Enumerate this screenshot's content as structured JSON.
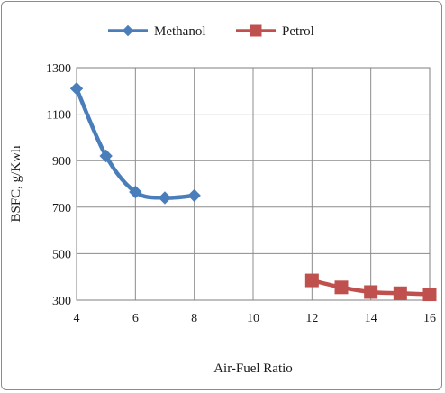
{
  "chart_data": {
    "type": "line",
    "xlabel": "Air-Fuel Ratio",
    "ylabel": "BSFC, g/Kwh",
    "xlim": [
      4,
      16
    ],
    "ylim": [
      300,
      1300
    ],
    "xticks": [
      4,
      6,
      8,
      10,
      12,
      14,
      16
    ],
    "yticks": [
      300,
      500,
      700,
      900,
      1100,
      1300
    ],
    "grid": true,
    "legend_position": "top",
    "series": [
      {
        "name": "Methanol",
        "color": "#4a7ebb",
        "marker": "diamond",
        "x": [
          4,
          5,
          6,
          7,
          8
        ],
        "y": [
          1210,
          920,
          765,
          740,
          750
        ]
      },
      {
        "name": "Petrol",
        "color": "#c0504d",
        "marker": "square",
        "x": [
          12,
          13,
          14,
          15,
          16
        ],
        "y": [
          385,
          355,
          335,
          330,
          325
        ]
      }
    ]
  }
}
